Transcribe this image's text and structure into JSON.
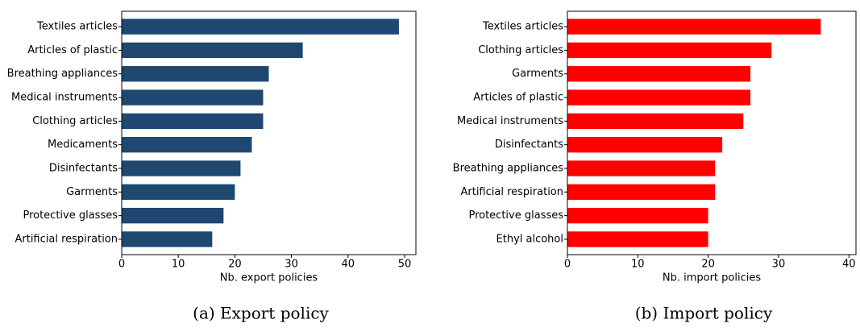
{
  "chart_data": [
    {
      "type": "bar",
      "orientation": "horizontal",
      "caption": "(a) Export policy",
      "xlabel": "Nb. export policies",
      "categories": [
        "Textiles articles",
        "Articles of plastic",
        "Breathing appliances",
        "Medical instruments",
        "Clothing articles",
        "Medicaments",
        "Disinfectants",
        "Garments",
        "Protective glasses",
        "Artificial respiration"
      ],
      "values": [
        49,
        32,
        26,
        25,
        25,
        23,
        21,
        20,
        18,
        16
      ],
      "color": "#1f4870",
      "xlim": [
        0,
        52
      ],
      "xticks": [
        0,
        10,
        20,
        30,
        40,
        50
      ]
    },
    {
      "type": "bar",
      "orientation": "horizontal",
      "caption": "(b) Import policy",
      "xlabel": "Nb. import policies",
      "categories": [
        "Textiles articles",
        "Clothing articles",
        "Garments",
        "Articles of plastic",
        "Medical instruments",
        "Disinfectants",
        "Breathing appliances",
        "Artificial respiration",
        "Protective glasses",
        "Ethyl alcohol"
      ],
      "values": [
        36,
        29,
        26,
        26,
        25,
        22,
        21,
        21,
        20,
        20
      ],
      "color": "#ff0000",
      "xlim": [
        0,
        41
      ],
      "xticks": [
        0,
        10,
        20,
        30,
        40
      ]
    }
  ]
}
